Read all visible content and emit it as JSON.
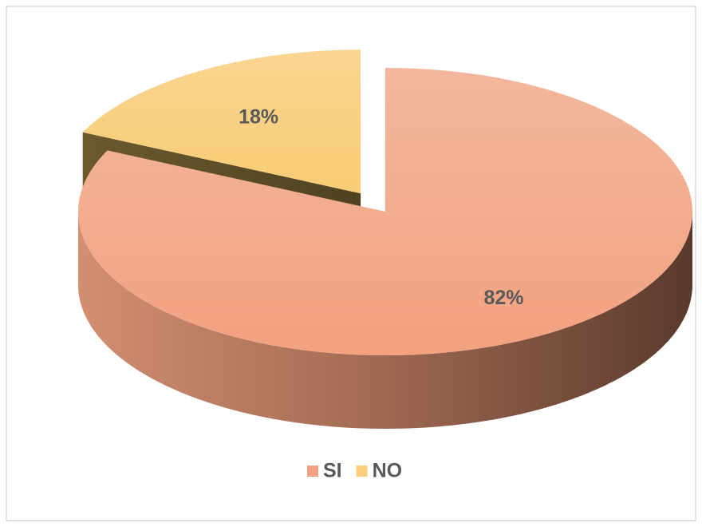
{
  "chart_data": {
    "type": "pie",
    "categories": [
      "SI",
      "NO"
    ],
    "values": [
      82,
      18
    ],
    "value_labels": [
      "82%",
      "18%"
    ],
    "colors": [
      "#f2a283",
      "#f9cf7a"
    ],
    "exploded": [
      false,
      true
    ],
    "legend": "bottom"
  }
}
